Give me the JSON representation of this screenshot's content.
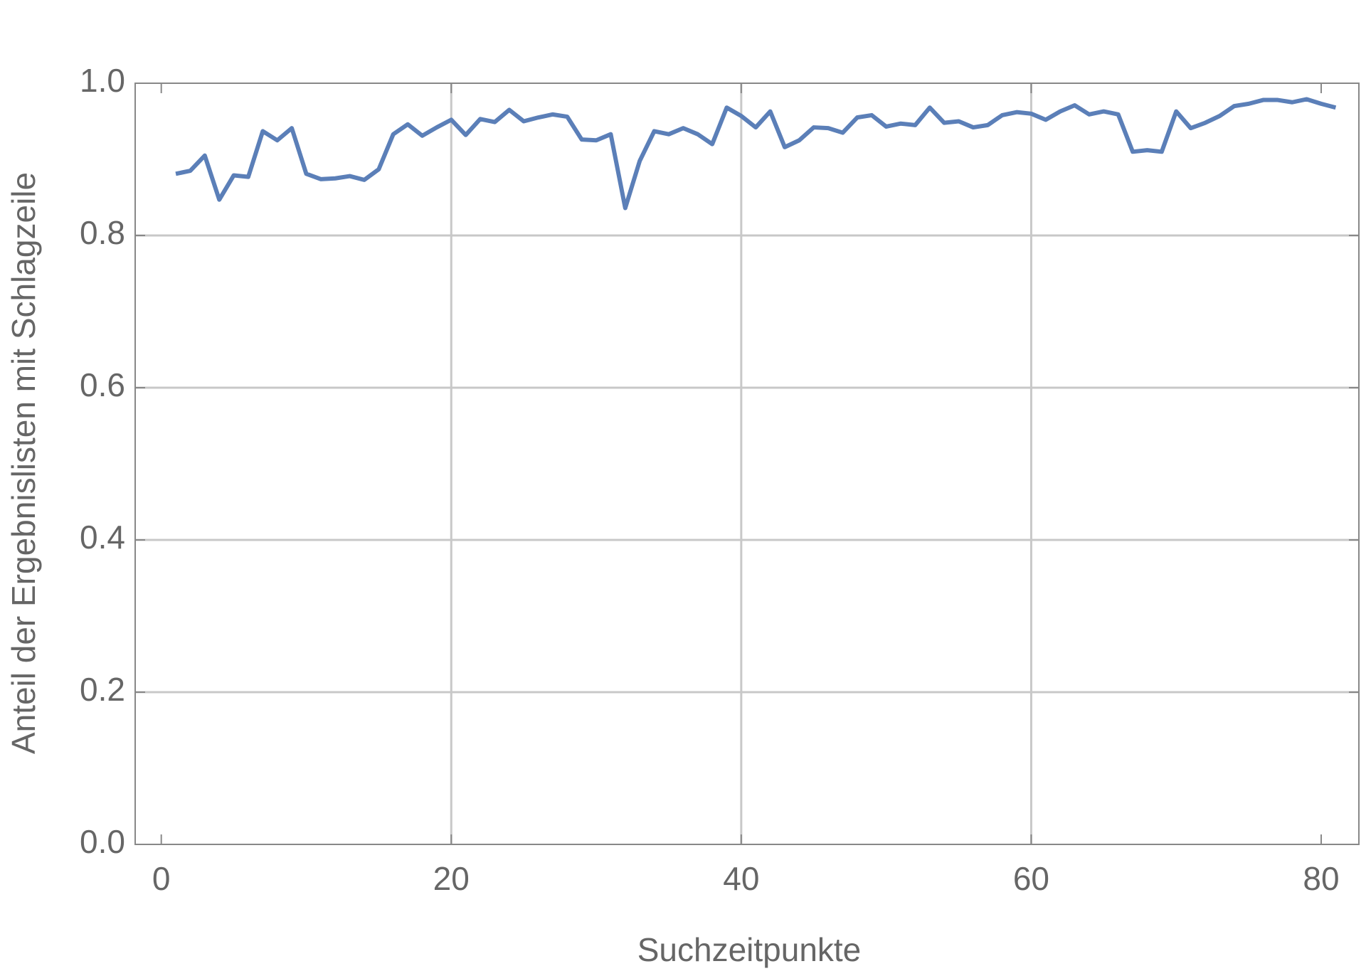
{
  "chart_data": {
    "type": "line",
    "x_label": "Suchzeitpunkte",
    "y_label": "Anteil der Ergebnislisten mit Schlagzeile",
    "x": [
      1,
      2,
      3,
      4,
      5,
      6,
      7,
      8,
      9,
      10,
      11,
      12,
      13,
      14,
      15,
      16,
      17,
      18,
      19,
      20,
      21,
      22,
      23,
      24,
      25,
      26,
      27,
      28,
      29,
      30,
      31,
      32,
      33,
      34,
      35,
      36,
      37,
      38,
      39,
      40,
      41,
      42,
      43,
      44,
      45,
      46,
      47,
      48,
      49,
      50,
      51,
      52,
      53,
      54,
      55,
      56,
      57,
      58,
      59,
      60,
      61,
      62,
      63,
      64,
      65,
      66,
      67,
      68,
      69,
      70,
      71,
      72,
      73,
      74,
      75,
      76,
      77,
      78,
      79,
      80,
      81
    ],
    "series": [
      {
        "color": "#5b7fb8",
        "values": [
          0.881,
          0.885,
          0.905,
          0.847,
          0.879,
          0.877,
          0.937,
          0.925,
          0.941,
          0.881,
          0.874,
          0.875,
          0.878,
          0.873,
          0.887,
          0.933,
          0.946,
          0.931,
          0.942,
          0.952,
          0.932,
          0.953,
          0.949,
          0.965,
          0.95,
          0.955,
          0.959,
          0.956,
          0.926,
          0.925,
          0.933,
          0.836,
          0.898,
          0.937,
          0.933,
          0.941,
          0.933,
          0.92,
          0.968,
          0.957,
          0.942,
          0.963,
          0.916,
          0.925,
          0.942,
          0.941,
          0.935,
          0.955,
          0.958,
          0.943,
          0.947,
          0.945,
          0.968,
          0.948,
          0.95,
          0.942,
          0.945,
          0.958,
          0.962,
          0.96,
          0.952,
          0.963,
          0.971,
          0.959,
          0.963,
          0.959,
          0.91,
          0.912,
          0.91,
          0.963,
          0.941,
          0.948,
          0.957,
          0.97,
          0.973,
          0.978,
          0.978,
          0.975,
          0.979,
          0.973,
          0.968
        ]
      }
    ],
    "xlim": [
      -1.8,
      82.6
    ],
    "ylim": [
      0,
      1
    ],
    "xticks": [
      0,
      20,
      40,
      60,
      80
    ],
    "yticks": [
      {
        "value": 0,
        "label": "0.0"
      },
      {
        "value": 0.2,
        "label": "0.2"
      },
      {
        "value": 0.4,
        "label": "0.4"
      },
      {
        "value": 0.6,
        "label": "0.6"
      },
      {
        "value": 0.8,
        "label": "0.8"
      },
      {
        "value": 1,
        "label": "1.0"
      }
    ],
    "grid": true
  }
}
